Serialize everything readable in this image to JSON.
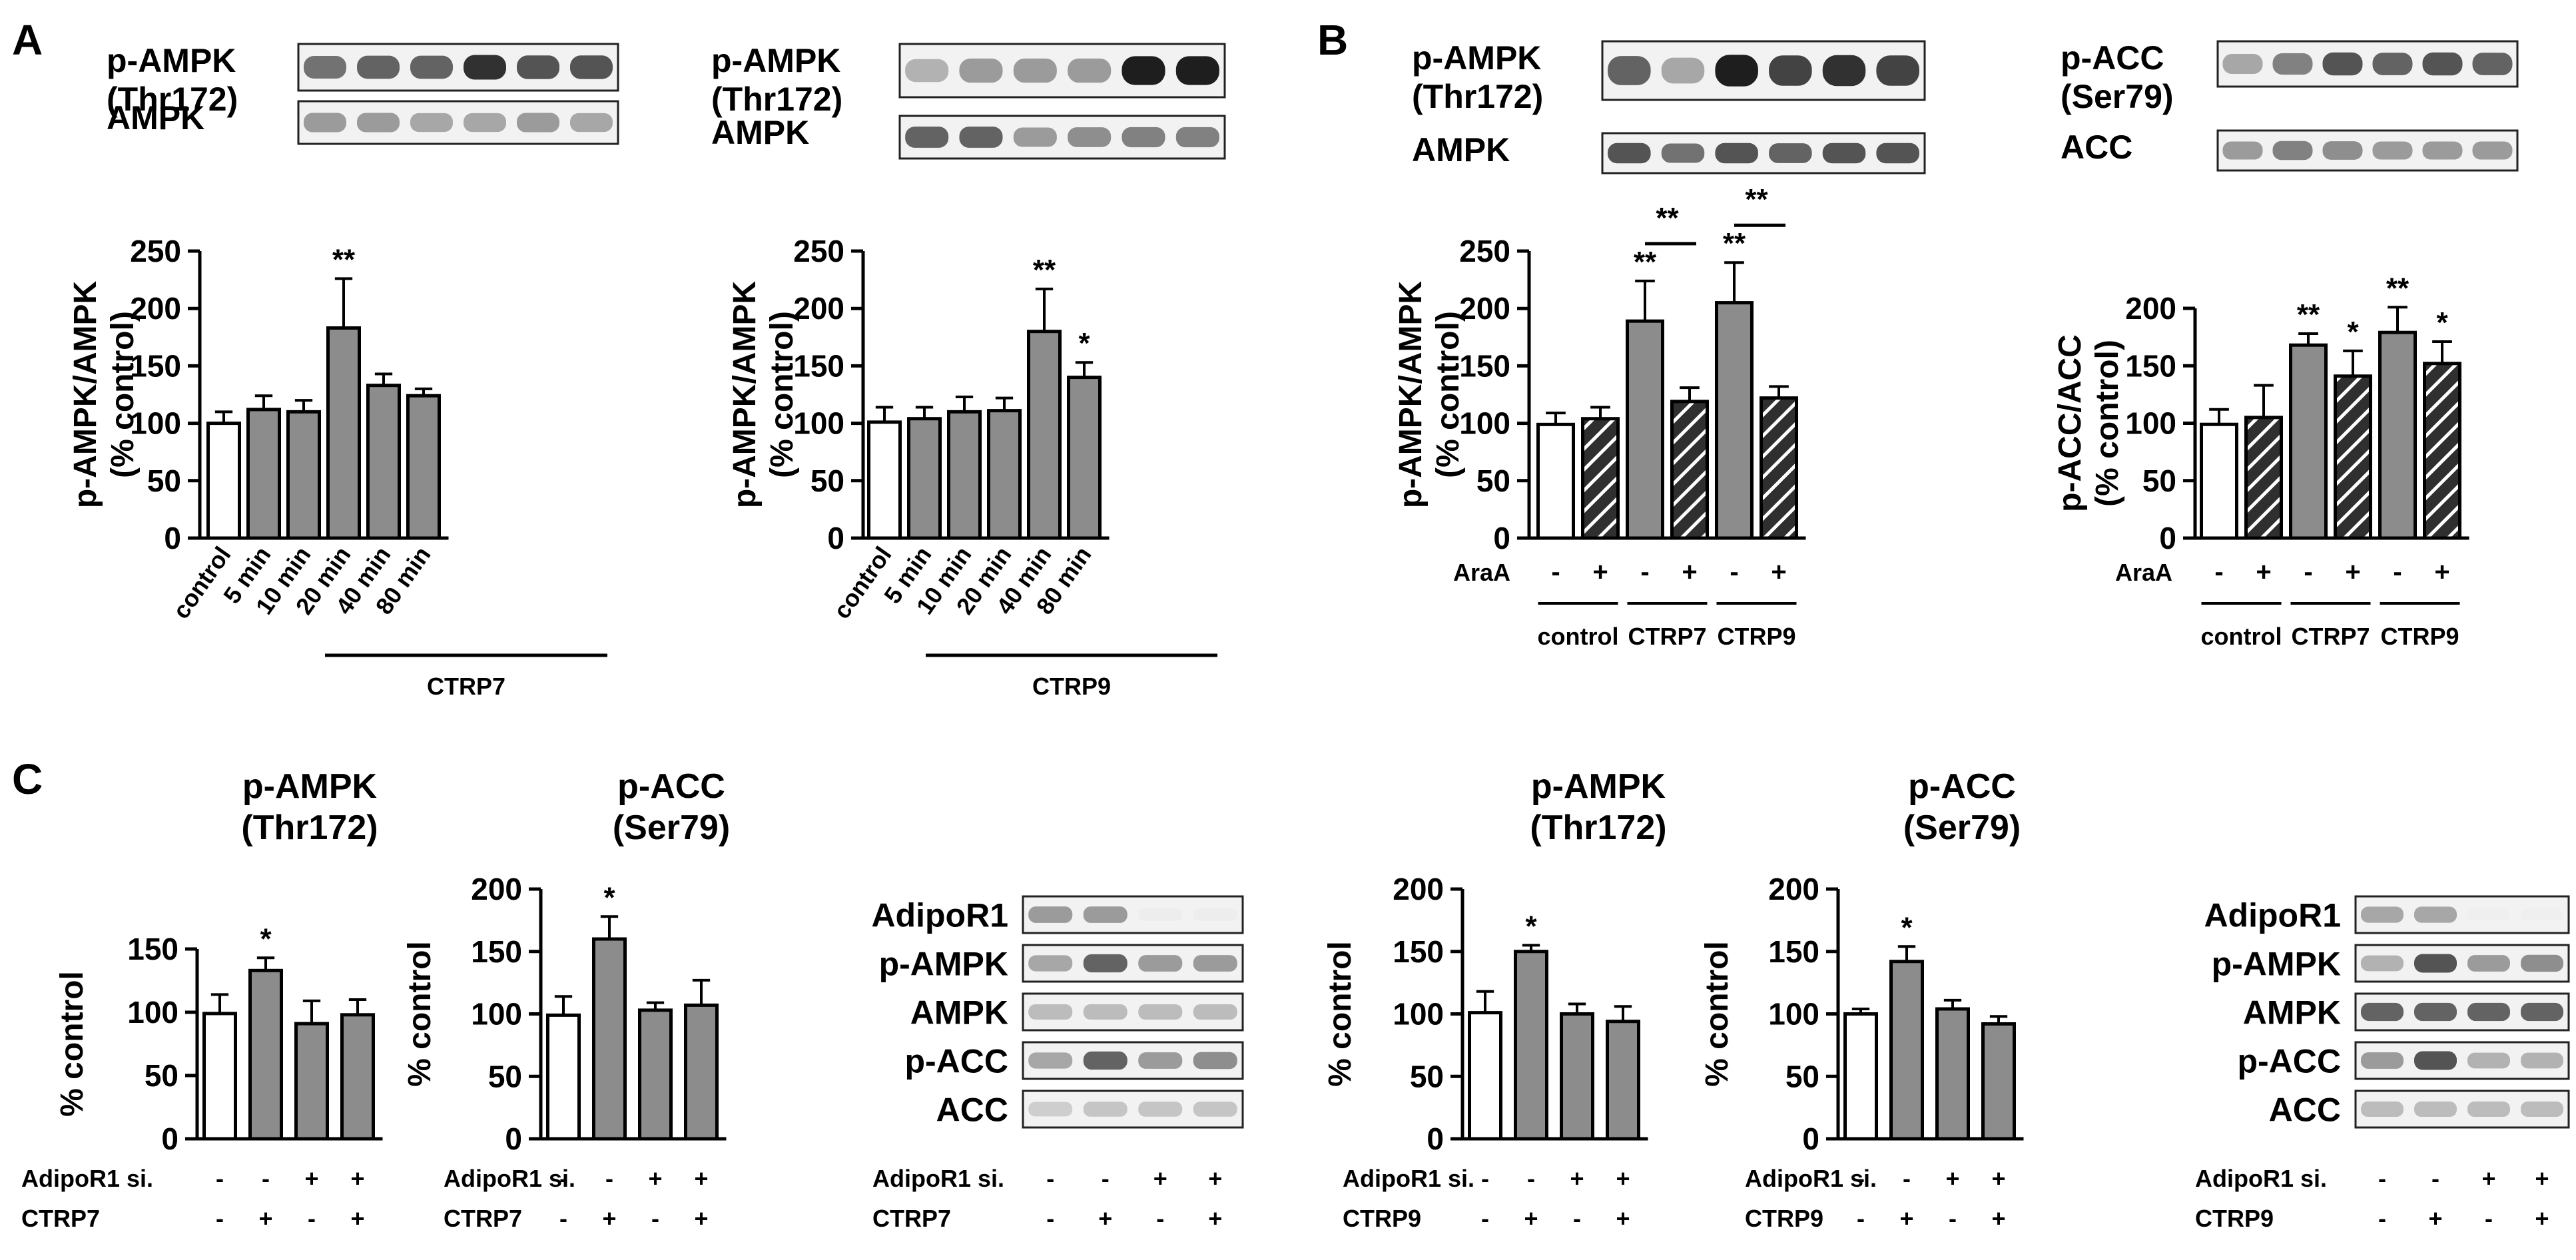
{
  "panels": {
    "A": {
      "letter": "A"
    },
    "B": {
      "letter": "B"
    },
    "C": {
      "letter": "C"
    }
  },
  "chart_data": [
    {
      "id": "A1",
      "type": "bar",
      "ylabel": [
        "p-AMPK/AMPK",
        "(% control)"
      ],
      "ylim": [
        0,
        250
      ],
      "yticks": [
        0,
        50,
        100,
        150,
        200,
        250
      ],
      "categories": [
        "control",
        "5 min",
        "10 min",
        "20 min",
        "40 min",
        "80 min"
      ],
      "values": [
        100,
        112,
        110,
        183,
        133,
        124
      ],
      "errors": [
        10,
        12,
        10,
        43,
        10,
        6
      ],
      "fills": [
        "white",
        "gray",
        "gray",
        "gray",
        "gray",
        "gray"
      ],
      "significance": [
        "",
        "",
        "",
        "**",
        "",
        ""
      ],
      "group_label": "CTRP7",
      "blots": [
        {
          "label": [
            "p-AMPK",
            "(Thr172)"
          ],
          "lanes": 6,
          "intensity": [
            0.75,
            0.8,
            0.8,
            0.95,
            0.85,
            0.85
          ]
        },
        {
          "label": [
            "AMPK"
          ],
          "lanes": 6,
          "intensity": [
            0.6,
            0.6,
            0.55,
            0.55,
            0.6,
            0.55
          ]
        }
      ]
    },
    {
      "id": "A2",
      "type": "bar",
      "ylabel": [
        "p-AMPK/AMPK",
        "(% control)"
      ],
      "ylim": [
        0,
        250
      ],
      "yticks": [
        0,
        50,
        100,
        150,
        200,
        250
      ],
      "categories": [
        "control",
        "5 min",
        "10 min",
        "20 min",
        "40 min",
        "80 min"
      ],
      "values": [
        101,
        104,
        110,
        111,
        180,
        140
      ],
      "errors": [
        13,
        10,
        13,
        11,
        37,
        13
      ],
      "fills": [
        "white",
        "gray",
        "gray",
        "gray",
        "gray",
        "gray"
      ],
      "significance": [
        "",
        "",
        "",
        "",
        "**",
        "*"
      ],
      "group_label": "CTRP9",
      "blots": [
        {
          "label": [
            "p-AMPK",
            "(Thr172)"
          ],
          "lanes": 6,
          "intensity": [
            0.5,
            0.6,
            0.6,
            0.6,
            1.0,
            1.0
          ]
        },
        {
          "label": [
            "AMPK"
          ],
          "lanes": 6,
          "intensity": [
            0.8,
            0.8,
            0.6,
            0.65,
            0.7,
            0.7
          ]
        }
      ]
    },
    {
      "id": "B1",
      "type": "bar",
      "ylabel": [
        "p-AMPK/AMPK",
        "(% control)"
      ],
      "ylim": [
        0,
        250
      ],
      "yticks": [
        0,
        50,
        100,
        150,
        200,
        250
      ],
      "categories": [
        "-",
        "+",
        "-",
        "+",
        "-",
        "+"
      ],
      "row_label": "AraA",
      "values": [
        99,
        104,
        189,
        119,
        205,
        122
      ],
      "errors": [
        10,
        10,
        35,
        12,
        35,
        10
      ],
      "fills": [
        "white",
        "hatch",
        "gray",
        "hatch",
        "gray",
        "hatch"
      ],
      "significance": [
        "",
        "",
        "**",
        "",
        "**",
        ""
      ],
      "brackets": [
        {
          "from": 2,
          "to": 3,
          "text": "**"
        },
        {
          "from": 4,
          "to": 5,
          "text": "**"
        }
      ],
      "groups": [
        "control",
        "CTRP7",
        "CTRP9"
      ],
      "blots": [
        {
          "label": [
            "p-AMPK",
            "(Thr172)"
          ],
          "lanes": 6,
          "intensity": [
            0.8,
            0.55,
            1.0,
            0.9,
            0.95,
            0.9
          ]
        },
        {
          "label": [
            "AMPK"
          ],
          "lanes": 6,
          "intensity": [
            0.85,
            0.75,
            0.85,
            0.8,
            0.85,
            0.85
          ]
        }
      ]
    },
    {
      "id": "B2",
      "type": "bar",
      "ylabel": [
        "p-ACC/ACC",
        "(% control)"
      ],
      "ylim": [
        0,
        200
      ],
      "yticks": [
        0,
        50,
        100,
        150,
        200
      ],
      "categories": [
        "-",
        "+",
        "-",
        "+",
        "-",
        "+"
      ],
      "row_label": "AraA",
      "values": [
        99,
        105,
        168,
        141,
        179,
        152
      ],
      "errors": [
        13,
        28,
        10,
        22,
        22,
        19
      ],
      "fills": [
        "white",
        "hatch",
        "gray",
        "hatch",
        "gray",
        "hatch"
      ],
      "significance": [
        "",
        "",
        "**",
        "*",
        "**",
        "*"
      ],
      "groups": [
        "control",
        "CTRP7",
        "CTRP9"
      ],
      "blots": [
        {
          "label": [
            "p-ACC",
            "(Ser79)"
          ],
          "lanes": 6,
          "intensity": [
            0.55,
            0.7,
            0.85,
            0.8,
            0.85,
            0.8
          ]
        },
        {
          "label": [
            "ACC"
          ],
          "lanes": 6,
          "intensity": [
            0.6,
            0.7,
            0.65,
            0.6,
            0.6,
            0.6
          ]
        }
      ]
    },
    {
      "id": "C1",
      "type": "bar",
      "title": [
        "p-AMPK",
        "(Thr172)"
      ],
      "ylabel": [
        "% control"
      ],
      "ylim": [
        0,
        150
      ],
      "yticks": [
        0,
        50,
        100,
        150
      ],
      "values": [
        99,
        133,
        91,
        98
      ],
      "errors": [
        15,
        10,
        18,
        12
      ],
      "fills": [
        "white",
        "gray",
        "gray",
        "gray"
      ],
      "significance": [
        "",
        "*",
        "",
        ""
      ],
      "cond_rows": [
        {
          "label": "AdipoR1 si.",
          "marks": [
            "-",
            "-",
            "+",
            "+"
          ]
        },
        {
          "label": "CTRP7",
          "marks": [
            "-",
            "+",
            "-",
            "+"
          ]
        }
      ]
    },
    {
      "id": "C2",
      "type": "bar",
      "title": [
        "p-ACC",
        "(Ser79)"
      ],
      "ylabel": [
        "% control"
      ],
      "ylim": [
        0,
        200
      ],
      "yticks": [
        0,
        50,
        100,
        150,
        200
      ],
      "values": [
        99,
        160,
        103,
        107
      ],
      "errors": [
        15,
        18,
        6,
        20
      ],
      "fills": [
        "white",
        "gray",
        "gray",
        "gray"
      ],
      "significance": [
        "",
        "*",
        "",
        ""
      ],
      "cond_rows": [
        {
          "label": "AdipoR1 si.",
          "marks": [
            "-",
            "-",
            "+",
            "+"
          ]
        },
        {
          "label": "CTRP7",
          "marks": [
            "-",
            "+",
            "-",
            "+"
          ]
        }
      ]
    },
    {
      "id": "C3",
      "type": "bar",
      "title": [
        "p-AMPK",
        "(Thr172)"
      ],
      "ylabel": [
        "% control"
      ],
      "ylim": [
        0,
        200
      ],
      "yticks": [
        0,
        50,
        100,
        150,
        200
      ],
      "values": [
        101,
        150,
        100,
        94
      ],
      "errors": [
        17,
        5,
        8,
        12
      ],
      "fills": [
        "white",
        "gray",
        "gray",
        "gray"
      ],
      "significance": [
        "",
        "*",
        "",
        ""
      ],
      "cond_rows": [
        {
          "label": "AdipoR1 si.",
          "marks": [
            "-",
            "-",
            "+",
            "+"
          ]
        },
        {
          "label": "CTRP9",
          "marks": [
            "-",
            "+",
            "-",
            "+"
          ]
        }
      ]
    },
    {
      "id": "C4",
      "type": "bar",
      "title": [
        "p-ACC",
        "(Ser79)"
      ],
      "ylabel": [
        "% control"
      ],
      "ylim": [
        0,
        200
      ],
      "yticks": [
        0,
        50,
        100,
        150,
        200
      ],
      "values": [
        100,
        142,
        104,
        92
      ],
      "errors": [
        4,
        12,
        7,
        6
      ],
      "fills": [
        "white",
        "gray",
        "gray",
        "gray"
      ],
      "significance": [
        "",
        "*",
        "",
        ""
      ],
      "cond_rows": [
        {
          "label": "AdipoR1 si.",
          "marks": [
            "-",
            "-",
            "+",
            "+"
          ]
        },
        {
          "label": "CTRP9",
          "marks": [
            "-",
            "+",
            "-",
            "+"
          ]
        }
      ]
    }
  ],
  "blot_stacks": [
    {
      "id": "C-blots-1",
      "rows": [
        {
          "label": "AdipoR1",
          "lanes": 4,
          "intensity": [
            0.6,
            0.6,
            0.05,
            0.05
          ]
        },
        {
          "label": "p-AMPK",
          "lanes": 4,
          "intensity": [
            0.55,
            0.8,
            0.6,
            0.6
          ]
        },
        {
          "label": "AMPK",
          "lanes": 4,
          "intensity": [
            0.45,
            0.45,
            0.45,
            0.45
          ]
        },
        {
          "label": "p-ACC",
          "lanes": 4,
          "intensity": [
            0.55,
            0.8,
            0.6,
            0.65
          ]
        },
        {
          "label": "ACC",
          "lanes": 4,
          "intensity": [
            0.35,
            0.4,
            0.4,
            0.4
          ]
        }
      ],
      "cond_rows": [
        {
          "label": "AdipoR1 si.",
          "marks": [
            "-",
            "-",
            "+",
            "+"
          ]
        },
        {
          "label": "CTRP7",
          "marks": [
            "-",
            "+",
            "-",
            "+"
          ]
        }
      ]
    },
    {
      "id": "C-blots-2",
      "rows": [
        {
          "label": "AdipoR1",
          "lanes": 4,
          "intensity": [
            0.55,
            0.55,
            0.03,
            0.03
          ]
        },
        {
          "label": "p-AMPK",
          "lanes": 4,
          "intensity": [
            0.5,
            0.85,
            0.6,
            0.65
          ]
        },
        {
          "label": "AMPK",
          "lanes": 4,
          "intensity": [
            0.8,
            0.8,
            0.8,
            0.8
          ]
        },
        {
          "label": "p-ACC",
          "lanes": 4,
          "intensity": [
            0.6,
            0.85,
            0.5,
            0.5
          ]
        },
        {
          "label": "ACC",
          "lanes": 4,
          "intensity": [
            0.45,
            0.45,
            0.45,
            0.45
          ]
        }
      ],
      "cond_rows": [
        {
          "label": "AdipoR1 si.",
          "marks": [
            "-",
            "-",
            "+",
            "+"
          ]
        },
        {
          "label": "CTRP9",
          "marks": [
            "-",
            "+",
            "-",
            "+"
          ]
        }
      ]
    }
  ]
}
